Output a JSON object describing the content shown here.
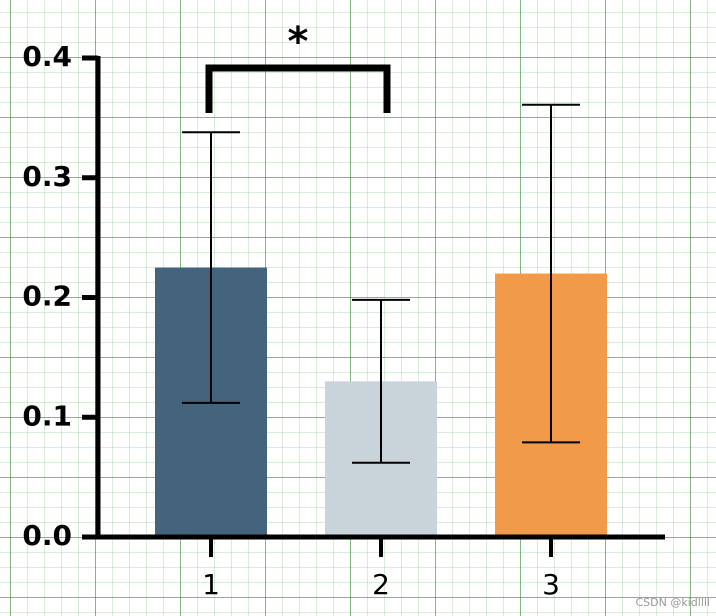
{
  "chart_data": {
    "type": "bar",
    "categories": [
      "1",
      "2",
      "3"
    ],
    "values": [
      0.225,
      0.13,
      0.22
    ],
    "errors": [
      0.113,
      0.068,
      0.141
    ],
    "colors": [
      "#44637d",
      "#c8d4da",
      "#f09a4a"
    ],
    "ylim": [
      0,
      0.4
    ],
    "yticks": [
      {
        "value": 0,
        "label": "0.0"
      },
      0.1,
      0.2,
      0.3,
      0.4
    ],
    "annotation": "*",
    "watermark": "CSDN @kidllll"
  }
}
